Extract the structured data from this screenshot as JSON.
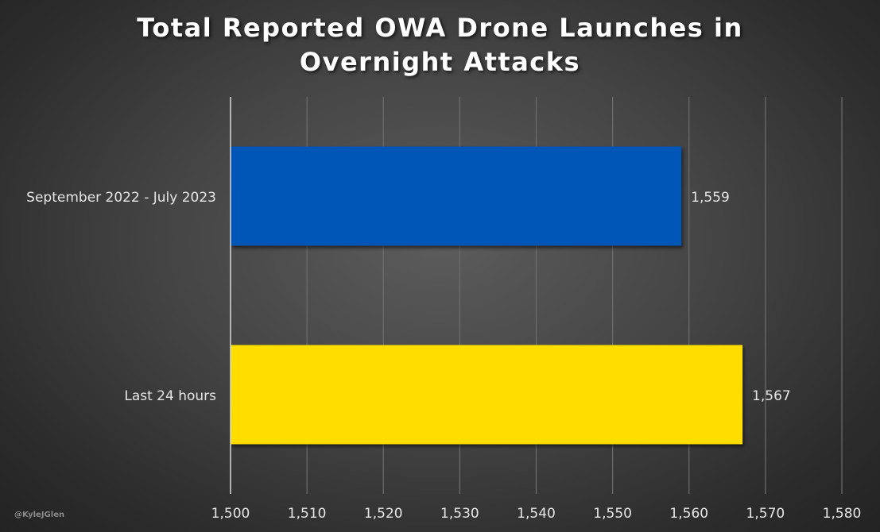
{
  "title_lines": [
    "Total Reported OWA Drone Launches in",
    "Overnight Attacks"
  ],
  "watermark": "@KyleJGlen",
  "colors": {
    "series_1": "#0057b7",
    "series_2": "#ffdd00",
    "gridline": "#6e6e6e",
    "axis_line": "#d9d9d9",
    "text": "#e6e6e6"
  },
  "chart_data": {
    "type": "bar",
    "orientation": "horizontal",
    "title": "Total Reported OWA Drone Launches in Overnight Attacks",
    "categories": [
      "September 2022 - July 2023",
      "Last 24 hours"
    ],
    "values": [
      1559,
      1567
    ],
    "value_labels": [
      "1,559",
      "1,567"
    ],
    "bar_colors": [
      "#0057b7",
      "#ffdd00"
    ],
    "xlim": [
      1500,
      1580
    ],
    "x_ticks": [
      1500,
      1510,
      1520,
      1530,
      1540,
      1550,
      1560,
      1570,
      1580
    ],
    "x_tick_labels": [
      "1,500",
      "1,510",
      "1,520",
      "1,530",
      "1,540",
      "1,550",
      "1,560",
      "1,570",
      "1,580"
    ],
    "xlabel": "",
    "ylabel": "",
    "grid": true,
    "legend": false
  }
}
